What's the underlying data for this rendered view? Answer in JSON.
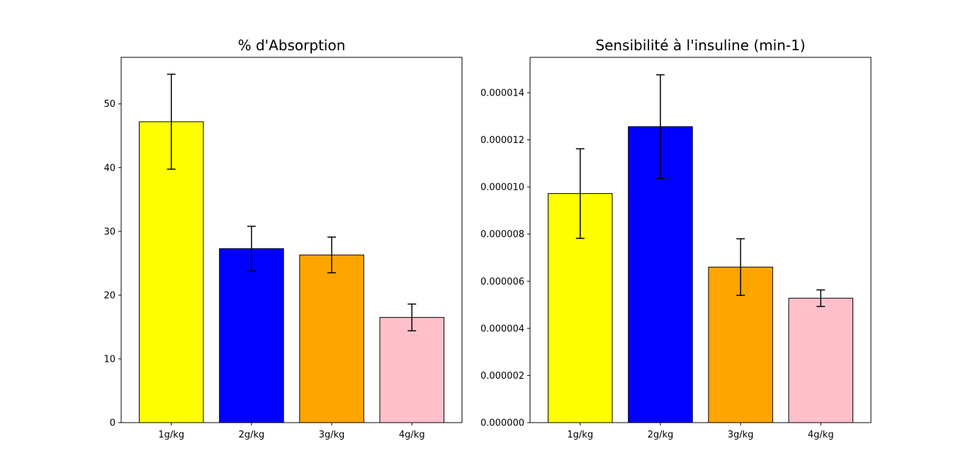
{
  "chart_data": [
    {
      "type": "bar",
      "title": "% d'Absorption",
      "xlabel": "",
      "ylabel": "",
      "categories": [
        "1g/kg",
        "2g/kg",
        "3g/kg",
        "4g/kg"
      ],
      "values": [
        47.2,
        27.3,
        26.3,
        16.5
      ],
      "errors": [
        7.45,
        3.5,
        2.8,
        2.1
      ],
      "colors": [
        "#ffff00",
        "#0000ff",
        "#ffa500",
        "#ffc0cb"
      ],
      "ylim": [
        0,
        57.3
      ],
      "yticks": [
        0,
        10,
        20,
        30,
        40,
        50
      ],
      "ytick_labels": [
        "0",
        "10",
        "20",
        "30",
        "40",
        "50"
      ],
      "grid": false,
      "legend": "none"
    },
    {
      "type": "bar",
      "title": "Sensibilité à l'insuline (min-1)",
      "xlabel": "",
      "ylabel": "",
      "categories": [
        "1g/kg",
        "2g/kg",
        "3g/kg",
        "4g/kg"
      ],
      "values": [
        9.72e-06,
        1.256e-05,
        6.6e-06,
        5.28e-06
      ],
      "errors": [
        1.9e-06,
        2.2e-06,
        1.2e-06,
        3.5e-07
      ],
      "colors": [
        "#ffff00",
        "#0000ff",
        "#ffa500",
        "#ffc0cb"
      ],
      "ylim": [
        0,
        1.55e-05
      ],
      "yticks": [
        0,
        2e-06,
        4e-06,
        6e-06,
        8e-06,
        1e-05,
        1.2e-05,
        1.4e-05
      ],
      "ytick_labels": [
        "0.000000",
        "0.000002",
        "0.000004",
        "0.000006",
        "0.000008",
        "0.000010",
        "0.000012",
        "0.000014"
      ],
      "grid": false,
      "legend": "none"
    }
  ]
}
